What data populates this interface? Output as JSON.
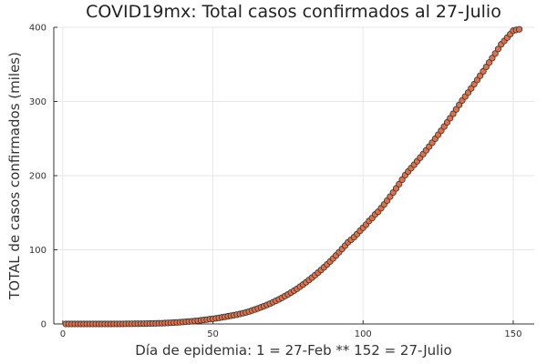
{
  "chart_data": {
    "type": "scatter",
    "title": "COVID19mx: Total casos confirmados al 27-Julio",
    "xlabel": "Día de epidemia: 1 = 27-Feb ** 152 = 27-Julio",
    "ylabel": "TOTAL de casos confirmados (miles)",
    "xlim": [
      -3,
      157
    ],
    "ylim": [
      0,
      400
    ],
    "xticks": [
      0,
      50,
      100,
      150
    ],
    "yticks": [
      0,
      100,
      200,
      300,
      400
    ],
    "grid": true,
    "legend": "none",
    "marker_color": "#e26f46",
    "x": [
      1,
      2,
      3,
      4,
      5,
      6,
      7,
      8,
      9,
      10,
      11,
      12,
      13,
      14,
      15,
      16,
      17,
      18,
      19,
      20,
      21,
      22,
      23,
      24,
      25,
      26,
      27,
      28,
      29,
      30,
      31,
      32,
      33,
      34,
      35,
      36,
      37,
      38,
      39,
      40,
      41,
      42,
      43,
      44,
      45,
      46,
      47,
      48,
      49,
      50,
      51,
      52,
      53,
      54,
      55,
      56,
      57,
      58,
      59,
      60,
      61,
      62,
      63,
      64,
      65,
      66,
      67,
      68,
      69,
      70,
      71,
      72,
      73,
      74,
      75,
      76,
      77,
      78,
      79,
      80,
      81,
      82,
      83,
      84,
      85,
      86,
      87,
      88,
      89,
      90,
      91,
      92,
      93,
      94,
      95,
      96,
      97,
      98,
      99,
      100,
      101,
      102,
      103,
      104,
      105,
      106,
      107,
      108,
      109,
      110,
      111,
      112,
      113,
      114,
      115,
      116,
      117,
      118,
      119,
      120,
      121,
      122,
      123,
      124,
      125,
      126,
      127,
      128,
      129,
      130,
      131,
      132,
      133,
      134,
      135,
      136,
      137,
      138,
      139,
      140,
      141,
      142,
      143,
      144,
      145,
      146,
      147,
      148,
      149,
      150,
      151,
      152
    ],
    "y": [
      0.0,
      0.0,
      0.0,
      0.0,
      0.0,
      0.0,
      0.0,
      0.0,
      0.0,
      0.0,
      0.0,
      0.0,
      0.0,
      0.0,
      0.0,
      0.0,
      0.1,
      0.1,
      0.1,
      0.1,
      0.2,
      0.2,
      0.2,
      0.3,
      0.3,
      0.4,
      0.4,
      0.5,
      0.6,
      0.7,
      0.8,
      0.9,
      1.0,
      1.2,
      1.4,
      1.6,
      1.8,
      2.1,
      2.4,
      2.7,
      3.0,
      3.3,
      3.6,
      4.0,
      4.4,
      4.9,
      5.4,
      5.9,
      6.5,
      7.0,
      7.6,
      8.2,
      8.9,
      9.6,
      10.4,
      11.1,
      11.8,
      12.6,
      13.5,
      14.5,
      15.5,
      16.8,
      18.1,
      19.5,
      20.9,
      22.4,
      24.0,
      25.7,
      27.4,
      29.3,
      31.2,
      33.2,
      35.3,
      37.6,
      39.9,
      42.4,
      44.9,
      47.5,
      50.3,
      53.2,
      56.2,
      59.3,
      62.5,
      65.8,
      69.2,
      72.8,
      76.5,
      80.3,
      84.2,
      88.2,
      92.4,
      96.7,
      101.1,
      105.6,
      110.2,
      113.6,
      117.1,
      121.2,
      125.6,
      129.8,
      134.0,
      138.9,
      142.7,
      147.7,
      151.3,
      156.1,
      161.1,
      166.3,
      171.7,
      177.2,
      182.8,
      188.6,
      194.6,
      200.6,
      205.5,
      210.1,
      214.7,
      219.4,
      224.2,
      229.1,
      234.1,
      239.2,
      244.4,
      249.7,
      255.1,
      260.5,
      266.1,
      271.8,
      277.5,
      283.4,
      289.3,
      295.3,
      301.4,
      306.7,
      312.0,
      317.6,
      323.3,
      329.0,
      334.7,
      340.6,
      346.5,
      352.5,
      358.5,
      364.6,
      370.8,
      377.1,
      381.6,
      386.1,
      390.7,
      395.4,
      396.5,
      397.3
    ]
  }
}
